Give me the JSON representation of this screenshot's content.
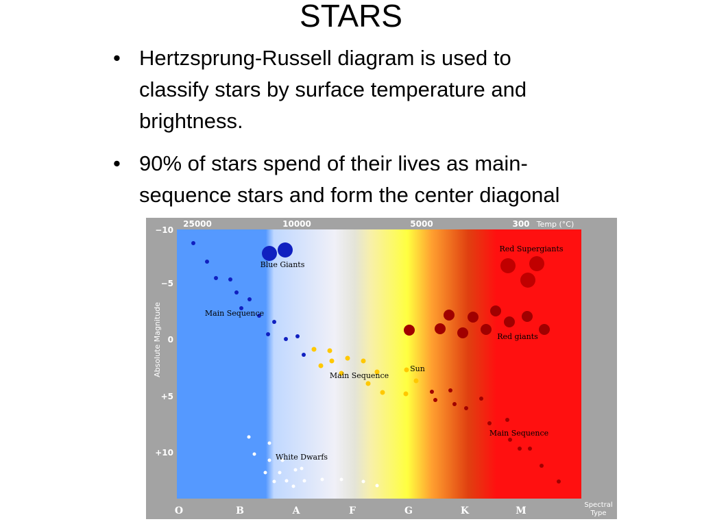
{
  "header": {
    "title": "STARS"
  },
  "bullets": [
    [
      "Hertzsprung-Russell diagram is used to",
      "classify stars by surface temperature and",
      "brightness."
    ],
    [
      "90% of stars spend of their lives as main-",
      "sequence stars and form the center diagonal"
    ]
  ],
  "figure": {
    "y_axis_label": "Absolute Magnitude",
    "y_ticks": [
      "−10",
      "−5",
      "0",
      "+5",
      "+10"
    ],
    "temperatures": [
      "25000",
      "10000",
      "5000",
      "300"
    ],
    "temp_label": "Temp (°C)",
    "spectral_classes": [
      "O",
      "B",
      "A",
      "F",
      "G",
      "K",
      "M"
    ],
    "spectral_label": [
      "Spectral",
      "Type"
    ],
    "annotations": [
      "Blue Giants",
      "Main Sequence",
      "Main Sequence",
      "Sun",
      "Red Supergiants",
      "Red giants",
      "Main Sequence",
      "White Dwarfs"
    ]
  }
}
